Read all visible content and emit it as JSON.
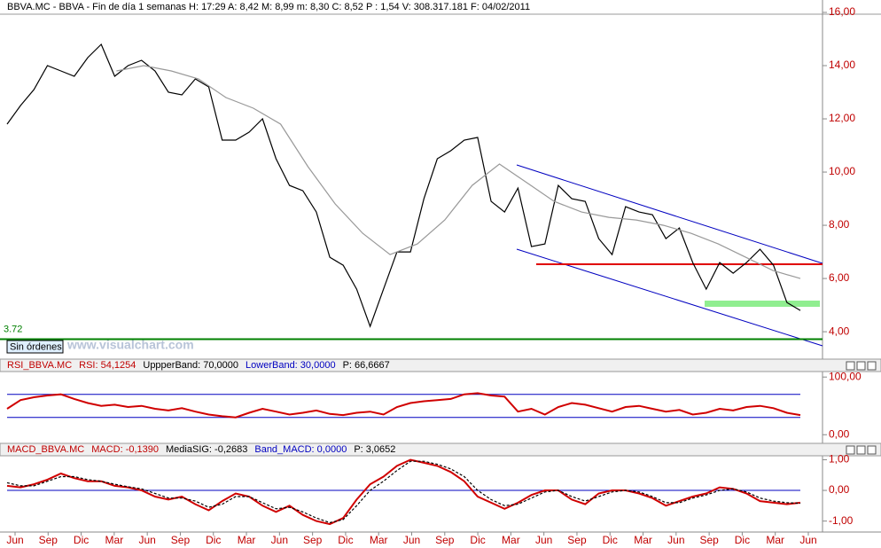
{
  "ui": {
    "button": "Sin órdenes",
    "watermark": "www.visualchart.com"
  },
  "time_axis": [
    "Jun",
    "Sep",
    "Dic",
    "Mar",
    "Jun",
    "Sep",
    "Dic",
    "Mar",
    "Jun",
    "Sep",
    "Dic",
    "Mar",
    "Jun",
    "Sep",
    "Dic",
    "Mar",
    "Jun",
    "Sep",
    "Dic",
    "Mar",
    "Jun",
    "Sep",
    "Dic",
    "Mar",
    "Jun"
  ],
  "chart_data": [
    {
      "type": "line",
      "title": "BBVA.MC - BBVA - Fin de día 1 semanas  H: 17:29  A: 8,42  M: 8,99  m: 8,30  C: 8,52  P : 1,54  V: 308.317.181  F: 04/02/2011",
      "series": [
        {
          "color": "#000000",
          "values": [
            11.8,
            12.5,
            13.1,
            14.0,
            13.8,
            13.6,
            14.3,
            14.8,
            13.6,
            14.0,
            14.2,
            13.8,
            13.0,
            12.9,
            13.5,
            13.2,
            11.2,
            11.2,
            11.5,
            12.0,
            10.5,
            9.5,
            9.3,
            8.5,
            6.8,
            6.5,
            5.6,
            4.2,
            5.6,
            7.0,
            7.0,
            9.0,
            10.5,
            10.8,
            11.2,
            11.3,
            8.9,
            8.5,
            9.4,
            7.2,
            7.3,
            9.5,
            9.0,
            8.9,
            7.5,
            6.9,
            8.7,
            8.5,
            8.4,
            7.5,
            7.9,
            6.6,
            5.6,
            6.6,
            6.2,
            6.6,
            7.1,
            6.5,
            5.1,
            4.8
          ]
        },
        {
          "color": "#999999",
          "values": [
            null,
            null,
            null,
            null,
            13.8,
            14.0,
            13.8,
            13.5,
            12.8,
            12.4,
            11.8,
            10.2,
            8.8,
            7.7,
            6.9,
            7.3,
            8.2,
            9.5,
            10.3,
            9.6,
            8.9,
            8.5,
            8.3,
            8.2,
            8.0,
            7.7,
            7.3,
            6.8,
            6.3,
            6.0
          ]
        }
      ],
      "support": 3.72,
      "support_color": "#008000",
      "ylim": [
        3.07,
        16.0
      ],
      "yticks": [
        {
          "value": 4,
          "label": "4,00"
        },
        {
          "value": 6,
          "label": "6,00"
        },
        {
          "value": 8,
          "label": "8,00"
        },
        {
          "value": 10,
          "label": "10,00"
        },
        {
          "value": 12,
          "label": "12,00"
        },
        {
          "value": 14,
          "label": "14,00"
        },
        {
          "value": 16,
          "label": "16,00"
        }
      ]
    },
    {
      "type": "line",
      "header": [
        {
          "text": "RSI_BBVA.MC",
          "color": "#c00000"
        },
        {
          "text": "RSI: 54,1254",
          "color": "#c00000"
        },
        {
          "text": "UppperBand: 70,0000",
          "color": "#000000"
        },
        {
          "text": "LowerBand: 30,0000",
          "color": "#0000c0"
        },
        {
          "text": "P: 66,6667",
          "color": "#000000"
        }
      ],
      "series": [
        {
          "color": "#d00000",
          "values": [
            45,
            60,
            65,
            68,
            70,
            62,
            55,
            50,
            52,
            48,
            50,
            45,
            42,
            46,
            40,
            35,
            32,
            30,
            38,
            45,
            40,
            35,
            38,
            42,
            36,
            34,
            38,
            40,
            35,
            48,
            55,
            58,
            60,
            62,
            70,
            72,
            68,
            66,
            40,
            45,
            35,
            48,
            55,
            52,
            46,
            40,
            48,
            50,
            45,
            40,
            43,
            35,
            38,
            45,
            42,
            48,
            50,
            46,
            38,
            34
          ]
        }
      ],
      "bands": [
        70,
        30
      ],
      "band_color": "#0000c0",
      "ylim": [
        -15,
        108
      ],
      "yticks": [
        {
          "value": 0,
          "label": "0,00"
        },
        {
          "value": 100,
          "label": "100,00"
        }
      ]
    },
    {
      "type": "line",
      "header": [
        {
          "text": "MACD_BBVA.MC",
          "color": "#c00000"
        },
        {
          "text": "MACD: -0,1390",
          "color": "#c00000"
        },
        {
          "text": "MediaSIG: -0,2683",
          "color": "#000000"
        },
        {
          "text": "Band_MACD: 0,0000",
          "color": "#0000c0"
        },
        {
          "text": "P: 3,0652",
          "color": "#000000"
        }
      ],
      "series": [
        {
          "color": "#d00000",
          "values": [
            0.15,
            0.1,
            0.2,
            0.35,
            0.55,
            0.4,
            0.3,
            0.3,
            0.15,
            0.1,
            0.0,
            -0.2,
            -0.3,
            -0.2,
            -0.45,
            -0.65,
            -0.35,
            -0.1,
            -0.2,
            -0.5,
            -0.7,
            -0.5,
            -0.8,
            -1.0,
            -1.1,
            -0.9,
            -0.3,
            0.2,
            0.45,
            0.8,
            1.0,
            0.9,
            0.8,
            0.6,
            0.3,
            -0.2,
            -0.4,
            -0.6,
            -0.4,
            -0.15,
            0.0,
            0.0,
            -0.3,
            -0.45,
            -0.1,
            0.0,
            0.0,
            -0.1,
            -0.25,
            -0.5,
            -0.35,
            -0.2,
            -0.1,
            0.1,
            0.05,
            -0.1,
            -0.35,
            -0.4,
            -0.45,
            -0.4
          ]
        },
        {
          "color": "#000000",
          "dashed": true,
          "values": [
            0.25,
            0.15,
            0.15,
            0.3,
            0.45,
            0.45,
            0.35,
            0.3,
            0.2,
            0.12,
            0.05,
            -0.1,
            -0.25,
            -0.25,
            -0.35,
            -0.55,
            -0.45,
            -0.2,
            -0.2,
            -0.4,
            -0.6,
            -0.55,
            -0.7,
            -0.9,
            -1.05,
            -0.95,
            -0.5,
            0.0,
            0.3,
            0.65,
            0.95,
            0.95,
            0.85,
            0.7,
            0.45,
            0.0,
            -0.3,
            -0.5,
            -0.45,
            -0.25,
            -0.05,
            0.0,
            -0.2,
            -0.35,
            -0.2,
            -0.05,
            0.0,
            -0.05,
            -0.2,
            -0.4,
            -0.4,
            -0.25,
            -0.15,
            0.0,
            0.05,
            -0.05,
            -0.25,
            -0.35,
            -0.4,
            -0.42
          ]
        }
      ],
      "bands": [
        0
      ],
      "band_color": "#0000c0",
      "ylim": [
        -1.3,
        1.1
      ],
      "yticks": [
        {
          "value": -1,
          "label": "-1,00"
        },
        {
          "value": 0,
          "label": "0,00"
        },
        {
          "value": 1,
          "label": "1,00"
        }
      ]
    }
  ]
}
